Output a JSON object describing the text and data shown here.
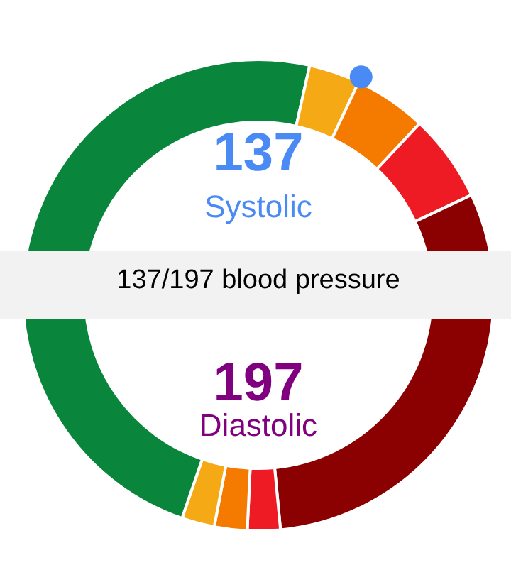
{
  "chart_data": [
    {
      "type": "donut",
      "title": "137",
      "subtitle": "Systolic",
      "annotations": [
        "137/197 blood pressure"
      ],
      "categories": [
        null,
        null,
        null,
        null,
        null
      ],
      "values": [
        57,
        7,
        10,
        12,
        14
      ],
      "colors": [
        "#0a863c",
        "#f4a915",
        "#f57a00",
        "#ee1b24",
        "#8b0000"
      ]
    },
    {
      "type": "donut",
      "title": "197",
      "subtitle": "Diastolic",
      "categories": [
        null,
        null,
        null,
        null,
        null
      ],
      "values": [
        47,
        4.5,
        4.5,
        4.5,
        39.5
      ],
      "colors": [
        "#8b0000",
        "#ee1b24",
        "#f57a00",
        "#f4a915",
        "#0a863c"
      ]
    }
  ]
}
